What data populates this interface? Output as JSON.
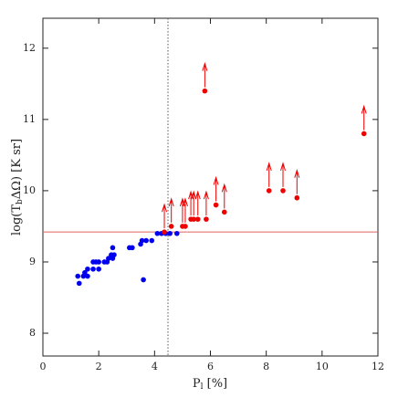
{
  "chart_data": {
    "type": "scatter",
    "xlabel": [
      "P",
      "l",
      " [%]"
    ],
    "ylabel": [
      "log(T",
      "b",
      "ΔΩ)  [K sr]"
    ],
    "xlim": [
      0,
      12
    ],
    "ylim": [
      7.68,
      12.42
    ],
    "xticks": [
      0,
      2,
      4,
      6,
      8,
      10,
      12
    ],
    "yticks": [
      8,
      9,
      10,
      11,
      12
    ],
    "hline": {
      "value": 9.42,
      "color": "#e06060"
    },
    "vline": {
      "value": 4.48,
      "color": "#555555"
    },
    "series": [
      {
        "color": "#0000ee",
        "lower_limits": false,
        "x": [
          1.3,
          1.25,
          1.45,
          1.6,
          1.5,
          1.6,
          1.8,
          1.8,
          1.9,
          2.0,
          2.0,
          2.2,
          2.3,
          2.35,
          2.45,
          2.5,
          2.55,
          2.5,
          3.1,
          3.2,
          3.5,
          3.55,
          3.6,
          3.7,
          3.9,
          4.1,
          4.25,
          4.4,
          4.55,
          4.8
        ],
        "y": [
          8.7,
          8.8,
          8.8,
          8.8,
          8.85,
          8.9,
          8.9,
          9.0,
          9.0,
          8.9,
          9.0,
          9.0,
          9.0,
          9.05,
          9.1,
          9.05,
          9.1,
          9.2,
          9.2,
          9.2,
          9.25,
          9.3,
          8.75,
          9.3,
          9.3,
          9.4,
          9.4,
          9.4,
          9.4,
          9.4
        ]
      },
      {
        "color": "#ee0000",
        "lower_limits": true,
        "x": [
          4.35,
          4.6,
          5.0,
          5.1,
          5.3,
          5.4,
          5.55,
          5.85,
          6.2,
          6.5,
          5.8,
          8.1,
          8.6,
          9.1,
          11.5
        ],
        "y": [
          9.42,
          9.5,
          9.5,
          9.5,
          9.6,
          9.6,
          9.6,
          9.6,
          9.8,
          9.7,
          11.4,
          10.0,
          10.0,
          9.9,
          10.8
        ]
      }
    ]
  }
}
